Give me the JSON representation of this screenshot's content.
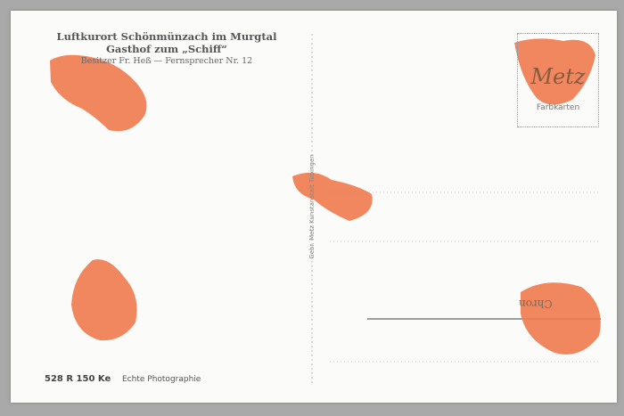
{
  "header": {
    "title": "Luftkurort Schönmünzach im Murgtal",
    "subtitle": "Gasthof zum „Schiff“",
    "owner": "Besitzer Fr. Heß — Fernsprecher Nr. 12"
  },
  "publisher": "Gebr. Metz Kunstanstalt Tübingen",
  "stamp": {
    "brand": "Metz",
    "text": "Farbkarten"
  },
  "postmark": "Chron",
  "footer": {
    "code": "528 R 150 Ke",
    "label": "Echte Photographie"
  }
}
